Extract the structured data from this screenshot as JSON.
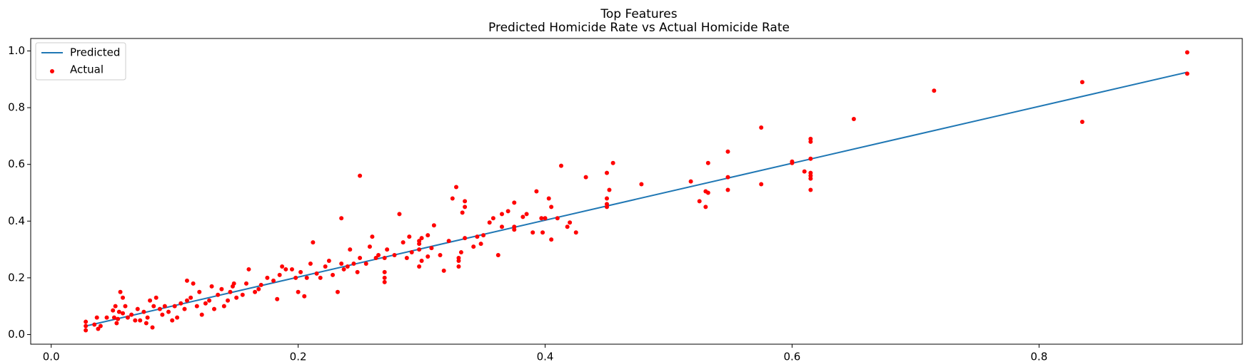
{
  "chart_data": {
    "type": "scatter",
    "title": "Top Features",
    "subtitle": "Predicted Homicide Rate vs Actual Homicide Rate",
    "xlim": [
      -0.0166,
      0.9646
    ],
    "ylim": [
      -0.034,
      1.044
    ],
    "xticks": [
      {
        "value": 0,
        "label": "0.0"
      },
      0.2,
      0.4,
      0.6,
      0.8
    ],
    "yticks": [
      {
        "value": 0,
        "label": "0.0"
      },
      0.2,
      0.4,
      0.6,
      0.8,
      {
        "value": 1,
        "label": "1.0"
      }
    ],
    "legend": "upper-left",
    "series": [
      {
        "name": "Predicted",
        "type": "line",
        "color": "#1f77b4",
        "x": [
          0.028,
          0.92
        ],
        "values": [
          0.03,
          0.925
        ]
      },
      {
        "name": "Actual",
        "type": "scatter",
        "color": "#ff0000",
        "x": [
          0.92,
          0.92,
          0.835,
          0.835,
          0.715,
          0.65,
          0.615,
          0.615,
          0.615,
          0.615,
          0.615,
          0.615,
          0.615,
          0.61,
          0.6,
          0.6,
          0.575,
          0.575,
          0.548,
          0.548,
          0.548,
          0.532,
          0.53,
          0.532,
          0.53,
          0.525,
          0.518,
          0.478,
          0.455,
          0.452,
          0.45,
          0.45,
          0.45,
          0.45,
          0.433,
          0.425,
          0.42,
          0.418,
          0.413,
          0.41,
          0.405,
          0.403,
          0.405,
          0.4,
          0.397,
          0.398,
          0.393,
          0.39,
          0.385,
          0.382,
          0.375,
          0.375,
          0.375,
          0.37,
          0.365,
          0.365,
          0.362,
          0.358,
          0.355,
          0.35,
          0.348,
          0.345,
          0.342,
          0.335,
          0.335,
          0.335,
          0.333,
          0.332,
          0.33,
          0.33,
          0.33,
          0.328,
          0.325,
          0.322,
          0.318,
          0.315,
          0.31,
          0.308,
          0.305,
          0.305,
          0.3,
          0.3,
          0.298,
          0.298,
          0.298,
          0.298,
          0.292,
          0.29,
          0.288,
          0.285,
          0.282,
          0.278,
          0.272,
          0.27,
          0.27,
          0.27,
          0.27,
          0.265,
          0.263,
          0.26,
          0.258,
          0.255,
          0.25,
          0.25,
          0.248,
          0.245,
          0.242,
          0.24,
          0.237,
          0.235,
          0.235,
          0.232,
          0.228,
          0.225,
          0.222,
          0.218,
          0.215,
          0.212,
          0.21,
          0.207,
          0.205,
          0.202,
          0.2,
          0.198,
          0.195,
          0.19,
          0.187,
          0.185,
          0.183,
          0.18,
          0.175,
          0.17,
          0.168,
          0.165,
          0.16,
          0.158,
          0.155,
          0.15,
          0.148,
          0.147,
          0.145,
          0.143,
          0.14,
          0.138,
          0.135,
          0.132,
          0.13,
          0.128,
          0.125,
          0.122,
          0.12,
          0.118,
          0.115,
          0.113,
          0.11,
          0.11,
          0.108,
          0.105,
          0.102,
          0.1,
          0.098,
          0.095,
          0.092,
          0.09,
          0.088,
          0.085,
          0.083,
          0.082,
          0.08,
          0.078,
          0.077,
          0.075,
          0.072,
          0.07,
          0.068,
          0.065,
          0.062,
          0.06,
          0.058,
          0.058,
          0.056,
          0.055,
          0.054,
          0.053,
          0.052,
          0.051,
          0.05,
          0.045,
          0.04,
          0.038,
          0.037,
          0.035,
          0.028,
          0.028,
          0.028
        ],
        "values": [
          0.995,
          0.92,
          0.89,
          0.75,
          0.86,
          0.76,
          0.69,
          0.68,
          0.62,
          0.57,
          0.56,
          0.55,
          0.51,
          0.575,
          0.61,
          0.605,
          0.73,
          0.53,
          0.645,
          0.555,
          0.51,
          0.605,
          0.505,
          0.5,
          0.45,
          0.47,
          0.54,
          0.53,
          0.605,
          0.51,
          0.57,
          0.48,
          0.46,
          0.45,
          0.555,
          0.36,
          0.395,
          0.38,
          0.595,
          0.41,
          0.45,
          0.48,
          0.335,
          0.41,
          0.41,
          0.36,
          0.505,
          0.36,
          0.425,
          0.415,
          0.465,
          0.38,
          0.37,
          0.435,
          0.425,
          0.38,
          0.28,
          0.41,
          0.395,
          0.35,
          0.32,
          0.345,
          0.31,
          0.47,
          0.45,
          0.34,
          0.43,
          0.29,
          0.27,
          0.26,
          0.24,
          0.52,
          0.48,
          0.33,
          0.225,
          0.28,
          0.385,
          0.305,
          0.35,
          0.275,
          0.34,
          0.26,
          0.33,
          0.32,
          0.3,
          0.24,
          0.29,
          0.345,
          0.27,
          0.325,
          0.425,
          0.28,
          0.3,
          0.27,
          0.22,
          0.2,
          0.185,
          0.28,
          0.27,
          0.345,
          0.31,
          0.25,
          0.56,
          0.27,
          0.22,
          0.25,
          0.3,
          0.24,
          0.23,
          0.41,
          0.25,
          0.15,
          0.21,
          0.26,
          0.24,
          0.2,
          0.215,
          0.325,
          0.25,
          0.2,
          0.135,
          0.22,
          0.15,
          0.2,
          0.23,
          0.23,
          0.24,
          0.21,
          0.125,
          0.19,
          0.2,
          0.175,
          0.16,
          0.15,
          0.23,
          0.18,
          0.14,
          0.13,
          0.18,
          0.17,
          0.15,
          0.12,
          0.1,
          0.16,
          0.14,
          0.09,
          0.17,
          0.12,
          0.11,
          0.07,
          0.15,
          0.1,
          0.18,
          0.13,
          0.19,
          0.12,
          0.09,
          0.11,
          0.06,
          0.1,
          0.05,
          0.08,
          0.1,
          0.07,
          0.09,
          0.13,
          0.1,
          0.025,
          0.12,
          0.06,
          0.04,
          0.08,
          0.05,
          0.09,
          0.05,
          0.07,
          0.06,
          0.1,
          0.13,
          0.075,
          0.15,
          0.08,
          0.055,
          0.04,
          0.1,
          0.06,
          0.085,
          0.06,
          0.03,
          0.02,
          0.06,
          0.035,
          0.045,
          0.015,
          0.03
        ]
      }
    ]
  }
}
